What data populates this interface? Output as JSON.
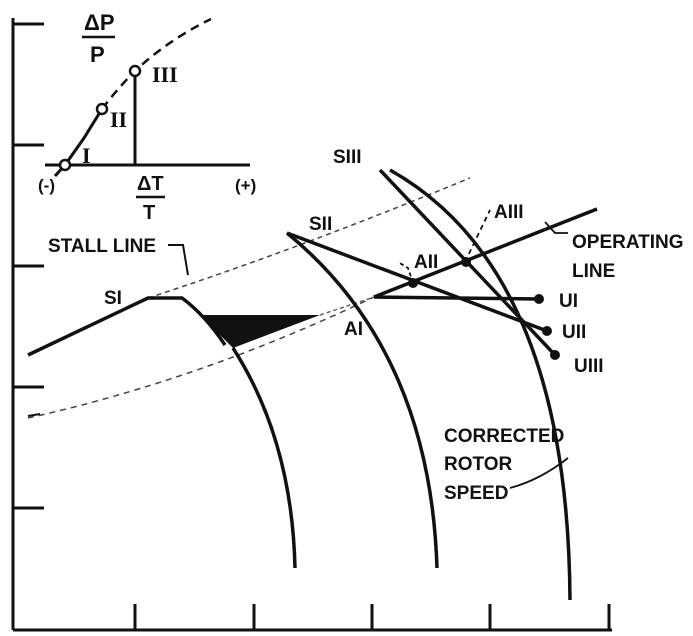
{
  "inset": {
    "y_label_num": "ΔP",
    "y_label_den": "P",
    "x_label_num": "ΔT",
    "x_label_den": "T",
    "x_minus": "(-)",
    "x_plus": "(+)",
    "points": [
      "I",
      "II",
      "III"
    ]
  },
  "labels": {
    "stall_line": "STALL LINE",
    "operating_line_1": "OPERATING",
    "operating_line_2": "LINE",
    "corrected_1": "CORRECTED",
    "corrected_2": "ROTOR",
    "corrected_3": "SPEED"
  },
  "points": {
    "s1": "SI",
    "s2": "SII",
    "s3": "SIII",
    "a1": "AI",
    "a2": "AII",
    "a3": "AIII",
    "u1": "UI",
    "u2": "UII",
    "u3": "UIII"
  },
  "colors": {
    "ink": "#111111",
    "paper": "#ffffff"
  }
}
